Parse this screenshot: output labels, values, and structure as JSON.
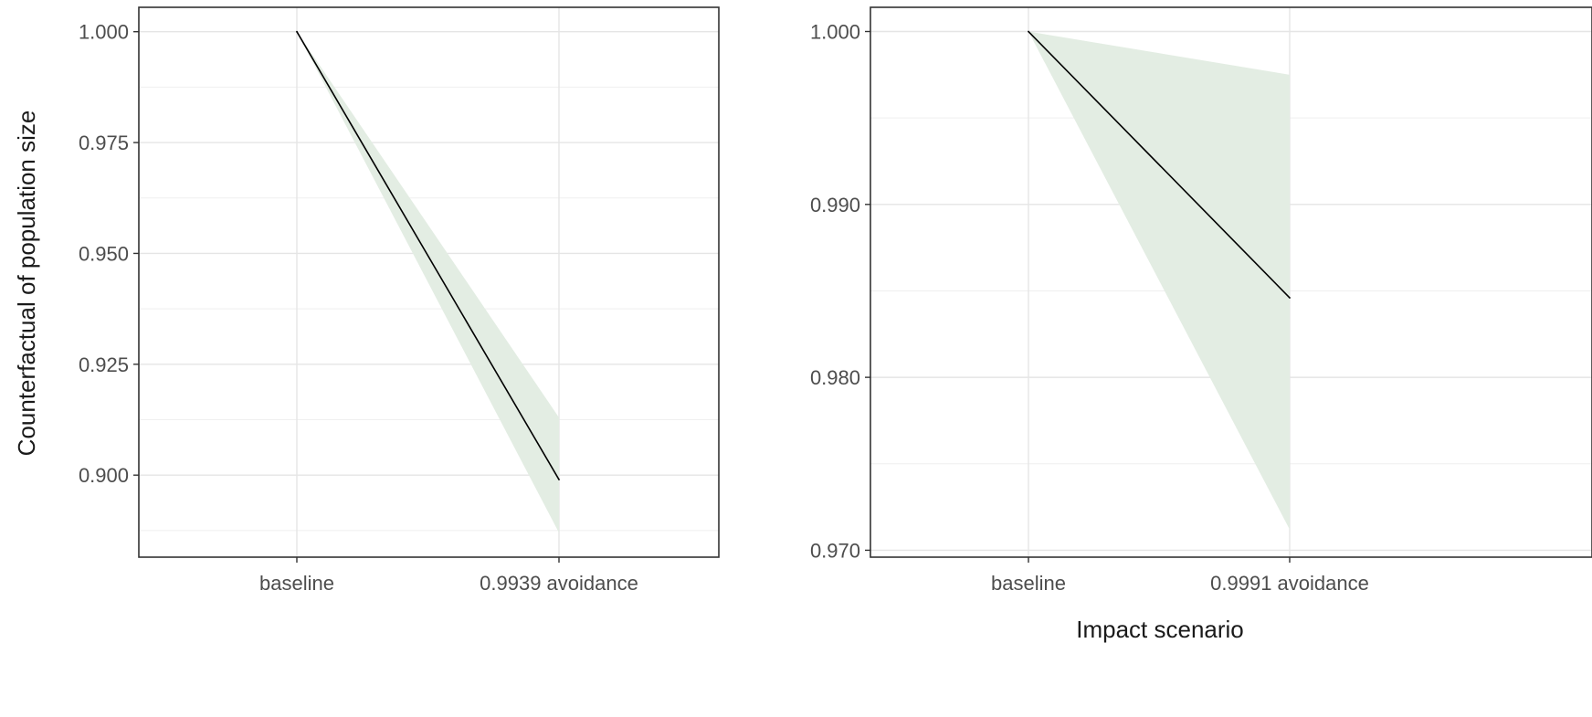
{
  "axis_titles": {
    "y": "Counterfactual of population size",
    "x": "Impact scenario"
  },
  "colors": {
    "ribbon": "#e3ede3",
    "line": "#000000",
    "panel_border": "#333333",
    "grid": "#e5e5e5",
    "tick_text": "#4d4d4d"
  },
  "chart_data": [
    {
      "type": "line",
      "categories": [
        "baseline",
        "0.9939 avoidance"
      ],
      "series": [
        {
          "values": [
            1.0,
            0.899
          ],
          "lower": [
            1.0,
            0.887
          ],
          "upper": [
            1.0,
            0.913
          ]
        }
      ],
      "ylim": [
        0.8815,
        1.0055
      ],
      "yticks": [
        0.9,
        0.925,
        0.95,
        0.975,
        1.0
      ],
      "ytick_labels": [
        "0.900",
        "0.925",
        "0.950",
        "0.975",
        "1.000"
      ],
      "ylabel": "Counterfactual of population size",
      "xlabel": "",
      "grid": true
    },
    {
      "type": "line",
      "categories": [
        "baseline",
        "0.9991 avoidance"
      ],
      "series": [
        {
          "values": [
            1.0,
            0.9846
          ],
          "lower": [
            1.0,
            0.9712
          ],
          "upper": [
            1.0,
            0.9975
          ]
        }
      ],
      "ylim": [
        0.9696,
        1.0014
      ],
      "yticks": [
        0.97,
        0.98,
        0.99,
        1.0
      ],
      "ytick_labels": [
        "0.970",
        "0.980",
        "0.990",
        "1.000"
      ],
      "ylabel": "",
      "xlabel": "Impact scenario",
      "grid": true
    }
  ]
}
